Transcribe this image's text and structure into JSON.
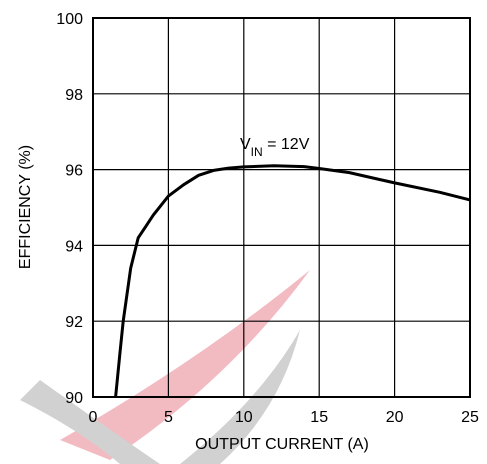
{
  "chart_data": {
    "type": "line",
    "x_label": "OUTPUT CURRENT (A)",
    "y_label": "EFFICIENCY (%)",
    "annotation": {
      "main": "V",
      "sub": "IN",
      "rest": " = 12V"
    },
    "series": [
      {
        "color": "#000000",
        "x": [
          1.5,
          1.8,
          2,
          2.5,
          3,
          3.5,
          4,
          5,
          6,
          7,
          8,
          9,
          10,
          12,
          14,
          15,
          17,
          20,
          23,
          25
        ],
        "values": [
          90,
          91.2,
          92,
          93.4,
          94.2,
          94.5,
          94.8,
          95.3,
          95.6,
          95.85,
          95.98,
          96.04,
          96.07,
          96.1,
          96.08,
          96.03,
          95.92,
          95.65,
          95.4,
          95.2
        ]
      }
    ],
    "xlim": [
      0,
      25
    ],
    "xticks": [
      0,
      5,
      10,
      15,
      20,
      25
    ],
    "ylim": [
      90,
      100
    ],
    "yticks": [
      90,
      92,
      94,
      96,
      98,
      100
    ],
    "grid": true
  }
}
